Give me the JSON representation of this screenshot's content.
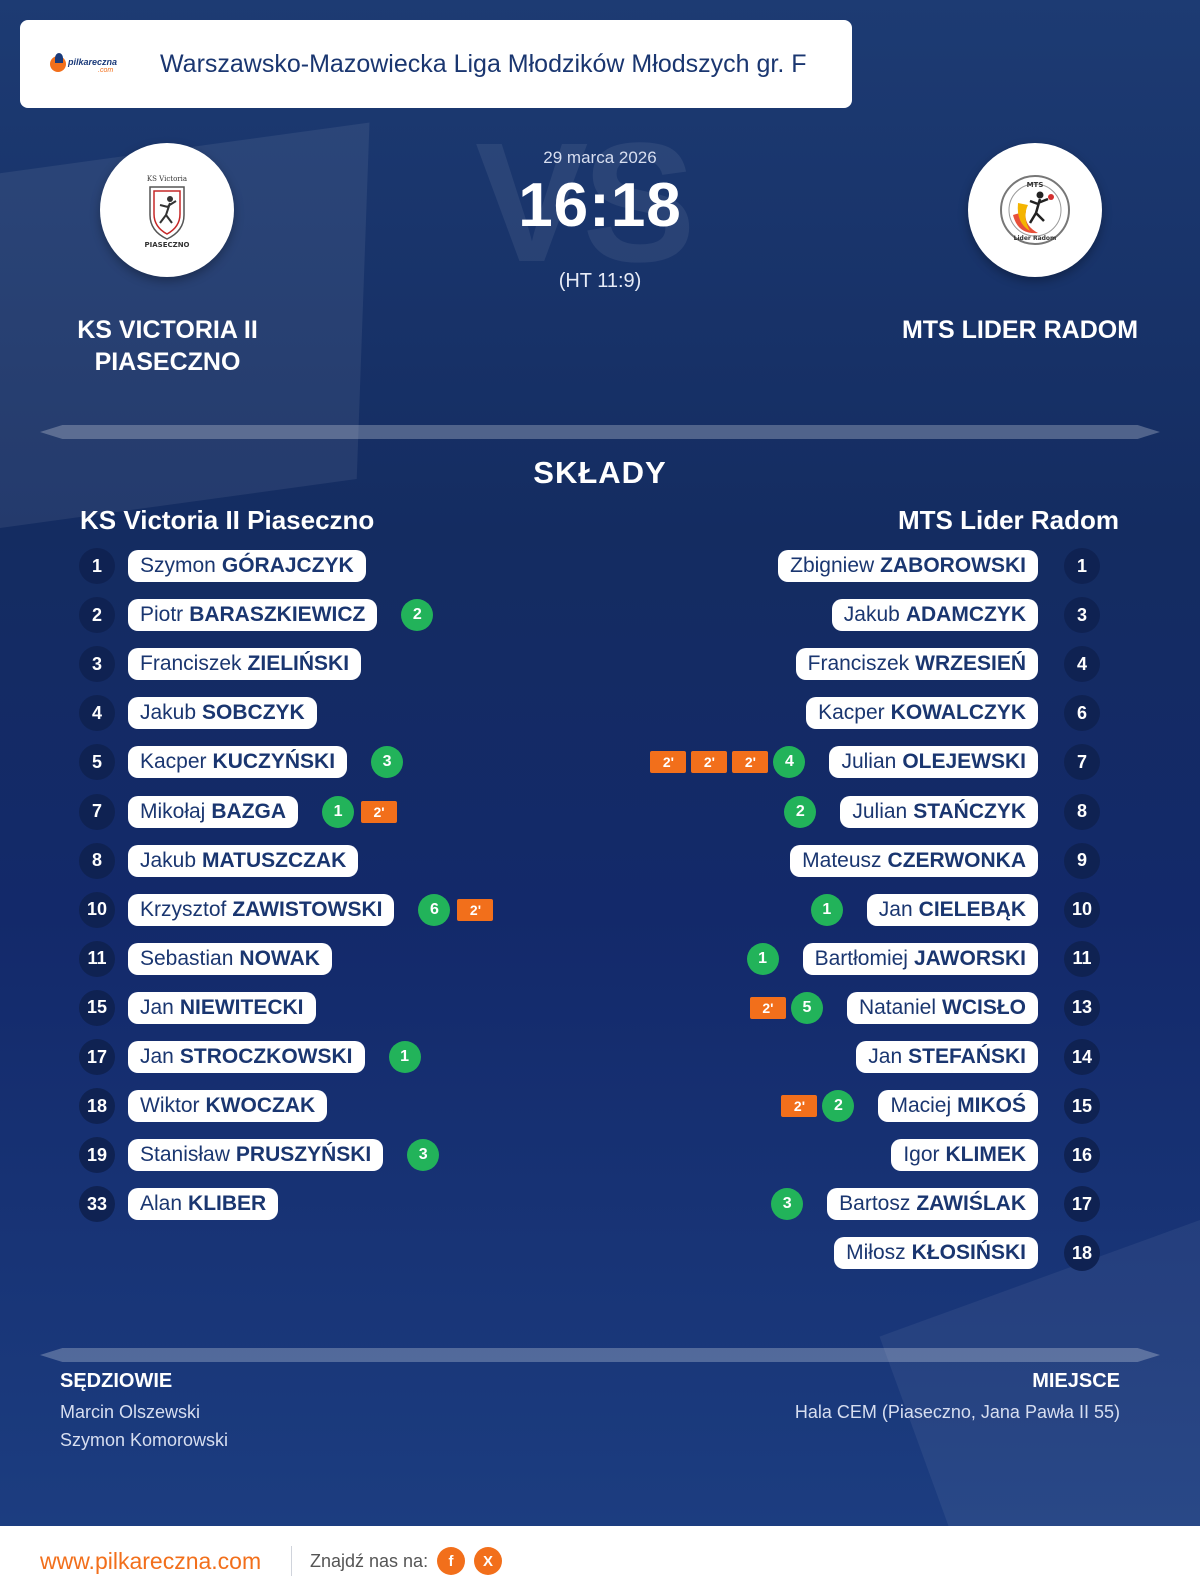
{
  "header": {
    "brand_name": "pilkareczna",
    "brand_suffix": ".com",
    "league": "Warszawsko-Mazowiecka Liga Młodzików Młodszych gr. F"
  },
  "match": {
    "vs_text": "VS",
    "date": "29 marca 2026",
    "score": "16:18",
    "halftime": "(HT 11:9)",
    "home_team": "KS VICTORIA II PIASECZNO",
    "away_team": "MTS LIDER RADOM",
    "home_logo_text_top": "KS Victoria",
    "home_logo_text_bottom": "PIASECZNO",
    "away_logo_text_top": "MTS",
    "away_logo_text_bottom": "Lider Radom"
  },
  "squads": {
    "title": "SKŁADY",
    "home_title": "KS Victoria II Piaseczno",
    "away_title": "MTS Lider Radom",
    "home": [
      {
        "number": "1",
        "first": "Szymon",
        "last": "GÓRAJCZYK",
        "goals": "",
        "suspensions": 0
      },
      {
        "number": "2",
        "first": "Piotr",
        "last": "BARASZKIEWICZ",
        "goals": "2",
        "suspensions": 0
      },
      {
        "number": "3",
        "first": "Franciszek",
        "last": "ZIELIŃSKI",
        "goals": "",
        "suspensions": 0
      },
      {
        "number": "4",
        "first": "Jakub",
        "last": "SOBCZYK",
        "goals": "",
        "suspensions": 0
      },
      {
        "number": "5",
        "first": "Kacper",
        "last": "KUCZYŃSKI",
        "goals": "3",
        "suspensions": 0
      },
      {
        "number": "7",
        "first": "Mikołaj",
        "last": "BAZGA",
        "goals": "1",
        "suspensions": 1
      },
      {
        "number": "8",
        "first": "Jakub",
        "last": "MATUSZCZAK",
        "goals": "",
        "suspensions": 0
      },
      {
        "number": "10",
        "first": "Krzysztof",
        "last": "ZAWISTOWSKI",
        "goals": "6",
        "suspensions": 1
      },
      {
        "number": "11",
        "first": "Sebastian",
        "last": "NOWAK",
        "goals": "",
        "suspensions": 0
      },
      {
        "number": "15",
        "first": "Jan",
        "last": "NIEWITECKI",
        "goals": "",
        "suspensions": 0
      },
      {
        "number": "17",
        "first": "Jan",
        "last": "STROCZKOWSKI",
        "goals": "1",
        "suspensions": 0
      },
      {
        "number": "18",
        "first": "Wiktor",
        "last": "KWOCZAK",
        "goals": "",
        "suspensions": 0
      },
      {
        "number": "19",
        "first": "Stanisław",
        "last": "PRUSZYŃSKI",
        "goals": "3",
        "suspensions": 0
      },
      {
        "number": "33",
        "first": "Alan",
        "last": "KLIBER",
        "goals": "",
        "suspensions": 0
      }
    ],
    "away": [
      {
        "number": "1",
        "first": "Zbigniew",
        "last": "ZABOROWSKI",
        "goals": "",
        "suspensions": 0
      },
      {
        "number": "3",
        "first": "Jakub",
        "last": "ADAMCZYK",
        "goals": "",
        "suspensions": 0
      },
      {
        "number": "4",
        "first": "Franciszek",
        "last": "WRZESIEŃ",
        "goals": "",
        "suspensions": 0
      },
      {
        "number": "6",
        "first": "Kacper",
        "last": "KOWALCZYK",
        "goals": "",
        "suspensions": 0
      },
      {
        "number": "7",
        "first": "Julian",
        "last": "OLEJEWSKI",
        "goals": "4",
        "suspensions": 3
      },
      {
        "number": "8",
        "first": "Julian",
        "last": "STAŃCZYK",
        "goals": "2",
        "suspensions": 0
      },
      {
        "number": "9",
        "first": "Mateusz",
        "last": "CZERWONKA",
        "goals": "",
        "suspensions": 0
      },
      {
        "number": "10",
        "first": "Jan",
        "last": "CIELEBĄK",
        "goals": "1",
        "suspensions": 0
      },
      {
        "number": "11",
        "first": "Bartłomiej",
        "last": "JAWORSKI",
        "goals": "1",
        "suspensions": 0
      },
      {
        "number": "13",
        "first": "Nataniel",
        "last": "WCISŁO",
        "goals": "5",
        "suspensions": 1
      },
      {
        "number": "14",
        "first": "Jan",
        "last": "STEFAŃSKI",
        "goals": "",
        "suspensions": 0
      },
      {
        "number": "15",
        "first": "Maciej",
        "last": "MIKOŚ",
        "goals": "2",
        "suspensions": 1
      },
      {
        "number": "16",
        "first": "Igor",
        "last": "KLIMEK",
        "goals": "",
        "suspensions": 0
      },
      {
        "number": "17",
        "first": "Bartosz",
        "last": "ZAWIŚLAK",
        "goals": "3",
        "suspensions": 0
      },
      {
        "number": "18",
        "first": "Miłosz",
        "last": "KŁOSIŃSKI",
        "goals": "",
        "suspensions": 0
      }
    ],
    "suspension_label": "2'"
  },
  "officials": {
    "label": "SĘDZIOWIE",
    "names": [
      "Marcin Olszewski",
      "Szymon Komorowski"
    ]
  },
  "venue": {
    "label": "MIEJSCE",
    "value": "Hala CEM (Piaseczno, Jana Pawła II 55)"
  },
  "footer": {
    "site": "www.pilkareczna.com",
    "find_us": "Znajdź nas na:",
    "facebook": "f",
    "x": "X"
  },
  "colors": {
    "accent": "#f26f1b",
    "goals": "#22b35a",
    "navy": "#142c61"
  }
}
